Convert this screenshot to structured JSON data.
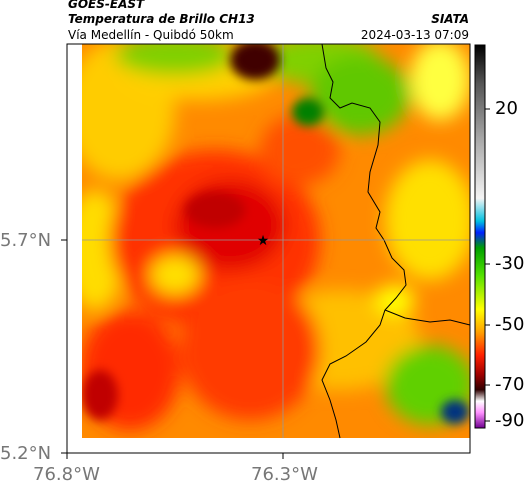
{
  "header": {
    "satellite": "GOES-EAST",
    "product": "Temperatura de Brillo CH13",
    "route": "Vía Medellín - Quibdó 50km",
    "organization": "SIATA",
    "datetime": "2024-03-13 07:09"
  },
  "axes": {
    "lat_ticks": [
      "5.7°N",
      "5.2°N"
    ],
    "lon_ticks": [
      "76.8°W",
      "76.3°W"
    ]
  },
  "marker": {
    "symbol": "★",
    "name": "point-of-interest"
  },
  "colorbar": {
    "ticks": [
      "20",
      "-30",
      "-50",
      "-70",
      "-90"
    ],
    "colors": [
      "#000000",
      "#444444",
      "#888888",
      "#c8c8c8",
      "#ffffff",
      "#00bfff",
      "#0000ff",
      "#00c000",
      "#60d800",
      "#ffff00",
      "#ffb000",
      "#ff7000",
      "#ff2000",
      "#c00000",
      "#400000",
      "#ffffff",
      "#ff80ff",
      "#8000a0"
    ]
  },
  "map_colors": {
    "cold_cloud": "#400000",
    "deep_red": "#e00000",
    "red": "#ff3000",
    "orange": "#ff8a00",
    "yellow": "#ffff00",
    "green": "#40c800",
    "border": "#000000",
    "grid": "#999999"
  }
}
